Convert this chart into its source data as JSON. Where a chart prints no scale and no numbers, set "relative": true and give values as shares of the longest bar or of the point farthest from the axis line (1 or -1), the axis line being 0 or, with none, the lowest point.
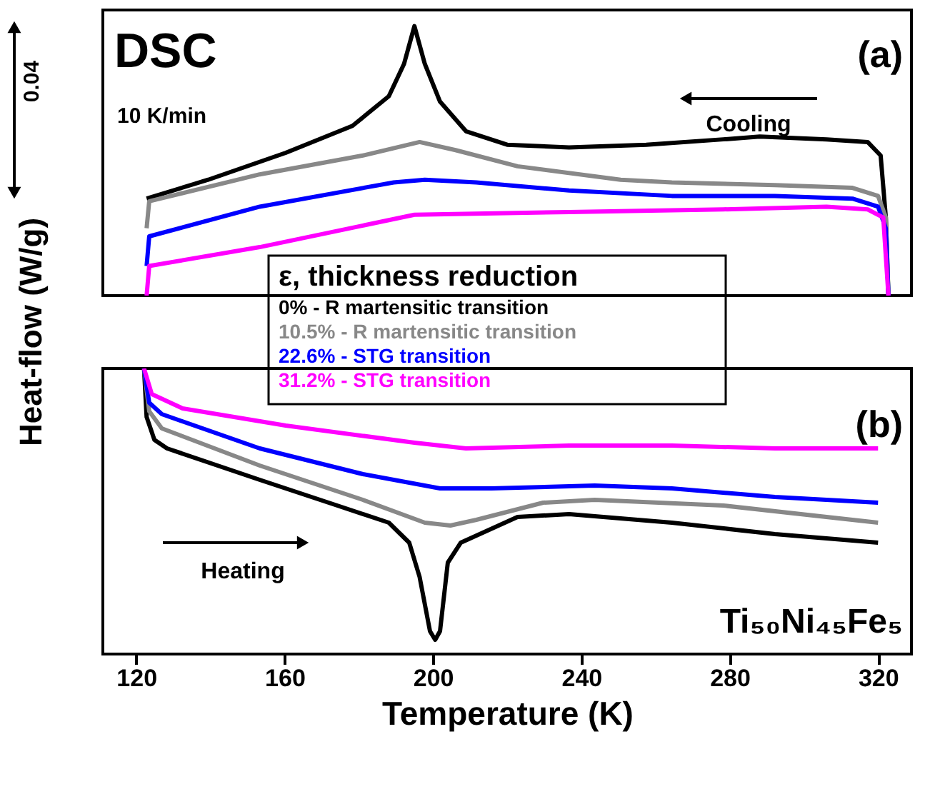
{
  "chart_data": [
    {
      "type": "line",
      "relative": true,
      "ylabel": "Heat-flow (W/g)",
      "legend_title": "ε, thickness reduction",
      "xlim": [
        111,
        329
      ],
      "tick_labels": false,
      "marker": "none",
      "line_style": "solid",
      "annotations": [
        "DSC",
        "10 K/min",
        "(a)",
        "Cooling",
        "0.04"
      ],
      "series": [
        {
          "name": "0% - R martensitic transition",
          "color": "#000000",
          "x": [
            122.8,
            139.4,
            160.3,
            178.3,
            188.1,
            192.2,
            195,
            197.8,
            201.9,
            208.9,
            220,
            236.7,
            257.5,
            278.3,
            288.1,
            306.1,
            317.2,
            320.7,
            322.1,
            322.8
          ],
          "values": [
            0.36,
            0.43,
            0.53,
            0.63,
            0.74,
            0.86,
            1.0,
            0.86,
            0.72,
            0.61,
            0.56,
            0.55,
            0.56,
            0.58,
            0.59,
            0.58,
            0.57,
            0.52,
            0.29,
            0
          ]
        },
        {
          "name": "10.5% - R martensitic transition",
          "color": "#888888",
          "x": [
            122.8,
            123.5,
            153.3,
            181.1,
            196.4,
            206.1,
            222.8,
            250.6,
            264.4,
            292.2,
            313.1,
            320,
            322.1,
            322.8
          ],
          "values": [
            0.25,
            0.35,
            0.45,
            0.52,
            0.57,
            0.54,
            0.48,
            0.43,
            0.42,
            0.41,
            0.4,
            0.37,
            0.29,
            0
          ]
        },
        {
          "name": "22.6% - STG transition",
          "color": "#0000ff",
          "x": [
            122.8,
            123.5,
            153.3,
            189.4,
            197.8,
            211.7,
            236.7,
            264.4,
            292.2,
            313.1,
            320,
            322.1,
            322.8
          ],
          "values": [
            0.11,
            0.22,
            0.33,
            0.42,
            0.43,
            0.42,
            0.39,
            0.37,
            0.37,
            0.36,
            0.33,
            0.25,
            0
          ]
        },
        {
          "name": "31.2% - STG transition",
          "color": "#ff00ff",
          "x": [
            122.8,
            123.5,
            153.3,
            195,
            236.7,
            278.3,
            306.1,
            317.2,
            321.4,
            322.8
          ],
          "values": [
            0,
            0.11,
            0.18,
            0.3,
            0.31,
            0.32,
            0.33,
            0.32,
            0.29,
            0
          ]
        }
      ]
    },
    {
      "type": "line",
      "relative": true,
      "xlabel": "Temperature (K)",
      "xlim": [
        111,
        329
      ],
      "xticks": [
        120,
        160,
        200,
        240,
        280,
        320
      ],
      "tick_labels": "x",
      "marker": "none",
      "line_style": "solid",
      "annotations": [
        "(b)",
        "Heating",
        "Ti₅₀Ni₄₅Fe₅"
      ],
      "series": [
        {
          "color": "#000000",
          "x": [
            122.1,
            122.8,
            124.9,
            128.3,
            153.3,
            174.2,
            188.1,
            193.6,
            196.4,
            199.2,
            200.6,
            201.9,
            204,
            207.5,
            222.8,
            236.7,
            264.4,
            292.2,
            320
          ],
          "values": [
            1.0,
            0.83,
            0.75,
            0.72,
            0.61,
            0.52,
            0.46,
            0.39,
            0.27,
            0.08,
            0.05,
            0.08,
            0.32,
            0.39,
            0.48,
            0.49,
            0.46,
            0.42,
            0.39
          ]
        },
        {
          "color": "#888888",
          "x": [
            122.1,
            123.5,
            126.9,
            153.3,
            181.1,
            197.8,
            204.7,
            211.7,
            229.7,
            243.6,
            278.3,
            320
          ],
          "values": [
            1.0,
            0.85,
            0.79,
            0.66,
            0.54,
            0.46,
            0.45,
            0.47,
            0.53,
            0.54,
            0.52,
            0.46
          ]
        },
        {
          "color": "#0000ff",
          "x": [
            122.1,
            123.5,
            126.9,
            153.3,
            181.1,
            201.9,
            215.8,
            243.6,
            264.4,
            292.2,
            320
          ],
          "values": [
            1.0,
            0.88,
            0.84,
            0.72,
            0.63,
            0.58,
            0.58,
            0.59,
            0.58,
            0.55,
            0.53
          ]
        },
        {
          "color": "#ff00ff",
          "x": [
            122.1,
            124.2,
            132.5,
            160.3,
            195,
            208.9,
            236.7,
            264.4,
            292.2,
            320
          ],
          "values": [
            1.0,
            0.91,
            0.86,
            0.8,
            0.74,
            0.72,
            0.73,
            0.73,
            0.72,
            0.72
          ]
        }
      ]
    }
  ]
}
